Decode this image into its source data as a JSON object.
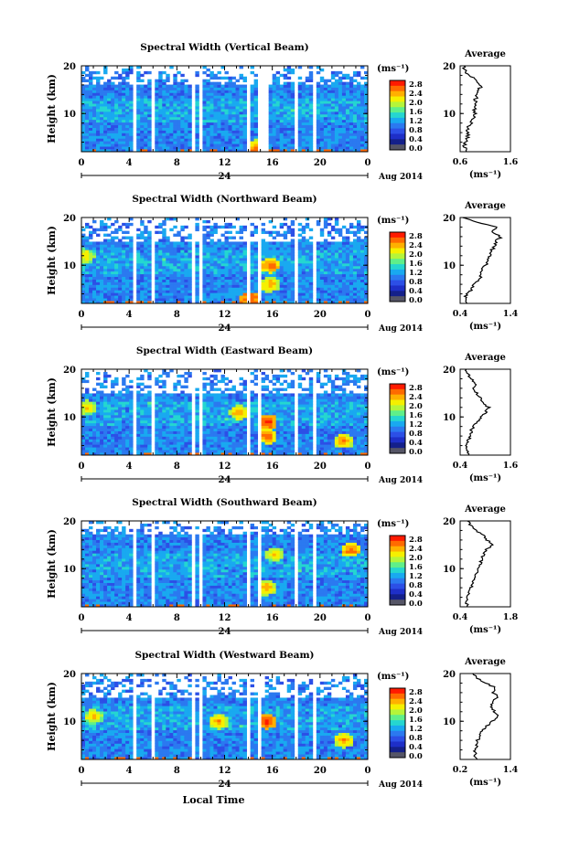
{
  "figure": {
    "date_label": "Aug 2014",
    "day_label": "24",
    "xlabel": "Local Time"
  },
  "colorbar": {
    "unit_label": "(ms⁻¹)",
    "ticks": [
      "2.8",
      "2.4",
      "2.0",
      "1.6",
      "1.2",
      "0.8",
      "0.4",
      "0.0"
    ],
    "colors": [
      "#ff1a00",
      "#ff6a00",
      "#ffb000",
      "#f5f000",
      "#b5f53a",
      "#5fef8a",
      "#25d6d0",
      "#19a9f0",
      "#2b79f0",
      "#2c4fe6",
      "#1e2fc8",
      "#14208a",
      "#555566"
    ]
  },
  "chart_data": [
    {
      "type": "heatmap",
      "title": "Spectral Width (Vertical Beam)",
      "ylabel": "Height (km)",
      "xlabel": "Local Time",
      "x_ticks": [
        "0",
        "4",
        "8",
        "12",
        "16",
        "20",
        "0"
      ],
      "y_ticks": [
        "20",
        "10"
      ],
      "xlim": [
        0,
        24
      ],
      "ylim": [
        2,
        20
      ],
      "gaps_hours": [
        [
          4.2,
          4.7
        ],
        [
          5.9,
          6.3
        ],
        [
          9.1,
          9.4
        ],
        [
          9.8,
          10.1
        ],
        [
          13.8,
          14.2
        ],
        [
          14.8,
          15.6
        ],
        [
          17.7,
          18.1
        ],
        [
          19.4,
          19.8
        ]
      ],
      "hot_spots": [
        {
          "t": 14.6,
          "h": 3,
          "v": 2.4
        }
      ],
      "sparse_above_km": 16,
      "profile": {
        "title": "Average",
        "xlabel": "(ms⁻¹)",
        "x_ticks": [
          "0.6",
          "1.6"
        ],
        "xlim": [
          0.6,
          1.6
        ],
        "y_ticks": [
          "20",
          "10"
        ],
        "heights": [
          2,
          3,
          4,
          5,
          6,
          7,
          8,
          9,
          10,
          11,
          12,
          13,
          14,
          15,
          16,
          17,
          18,
          19,
          20
        ],
        "values": [
          0.72,
          0.68,
          0.7,
          0.75,
          0.74,
          0.76,
          0.82,
          0.86,
          0.9,
          0.88,
          0.92,
          0.9,
          0.95,
          0.98,
          1.02,
          0.92,
          0.78,
          0.7,
          0.68
        ]
      }
    },
    {
      "type": "heatmap",
      "title": "Spectral Width (Northward Beam)",
      "ylabel": "Height (km)",
      "xlabel": "Local Time",
      "x_ticks": [
        "0",
        "4",
        "8",
        "12",
        "16",
        "20",
        "0"
      ],
      "y_ticks": [
        "20",
        "10"
      ],
      "xlim": [
        0,
        24
      ],
      "ylim": [
        2,
        20
      ],
      "gaps_hours": [
        [
          4.2,
          4.7
        ],
        [
          5.9,
          6.3
        ],
        [
          9.1,
          9.4
        ],
        [
          9.8,
          10.1
        ],
        [
          13.8,
          14.2
        ],
        [
          14.8,
          15.1
        ],
        [
          17.7,
          18.1
        ],
        [
          19.4,
          19.8
        ]
      ],
      "hot_spots": [
        {
          "t": 15.8,
          "h": 10,
          "v": 2.6
        },
        {
          "t": 15.8,
          "h": 6,
          "v": 2.4
        },
        {
          "t": 14.1,
          "h": 3,
          "v": 2.8
        },
        {
          "t": 0.3,
          "h": 12,
          "v": 2.2
        }
      ],
      "sparse_above_km": 15,
      "profile": {
        "title": "Average",
        "xlabel": "(ms⁻¹)",
        "x_ticks": [
          "0.4",
          "1.4"
        ],
        "xlim": [
          0.4,
          1.4
        ],
        "y_ticks": [
          "20",
          "10"
        ],
        "heights": [
          2,
          3,
          4,
          5,
          6,
          7,
          8,
          9,
          10,
          11,
          12,
          13,
          14,
          15,
          16,
          17,
          18,
          19,
          20
        ],
        "values": [
          0.55,
          0.5,
          0.55,
          0.62,
          0.7,
          0.8,
          0.82,
          0.85,
          0.9,
          0.96,
          1.0,
          1.02,
          1.08,
          1.12,
          1.2,
          1.05,
          1.15,
          0.7,
          0.45
        ]
      }
    },
    {
      "type": "heatmap",
      "title": "Spectral Width (Eastward Beam)",
      "ylabel": "Height (km)",
      "xlabel": "Local Time",
      "x_ticks": [
        "0",
        "4",
        "8",
        "12",
        "16",
        "20",
        "0"
      ],
      "y_ticks": [
        "20",
        "10"
      ],
      "xlim": [
        0,
        24
      ],
      "ylim": [
        2,
        20
      ],
      "gaps_hours": [
        [
          4.2,
          4.7
        ],
        [
          5.9,
          6.3
        ],
        [
          9.1,
          9.4
        ],
        [
          9.8,
          10.1
        ],
        [
          13.8,
          14.2
        ],
        [
          14.8,
          15.1
        ],
        [
          17.7,
          18.1
        ],
        [
          19.4,
          19.8
        ]
      ],
      "hot_spots": [
        {
          "t": 15.6,
          "h": 9,
          "v": 2.8
        },
        {
          "t": 15.6,
          "h": 6,
          "v": 2.6
        },
        {
          "t": 13.2,
          "h": 11,
          "v": 2.4
        },
        {
          "t": 0.5,
          "h": 12,
          "v": 2.2
        },
        {
          "t": 22.0,
          "h": 5,
          "v": 2.4
        }
      ],
      "sparse_above_km": 15,
      "profile": {
        "title": "Average",
        "xlabel": "(ms⁻¹)",
        "x_ticks": [
          "0.4",
          "1.6"
        ],
        "xlim": [
          0.4,
          1.6
        ],
        "y_ticks": [
          "20",
          "10"
        ],
        "heights": [
          2,
          3,
          4,
          5,
          6,
          7,
          8,
          9,
          10,
          11,
          12,
          13,
          14,
          15,
          16,
          17,
          18,
          19,
          20
        ],
        "values": [
          0.62,
          0.58,
          0.56,
          0.6,
          0.62,
          0.66,
          0.72,
          0.8,
          0.92,
          1.02,
          1.08,
          0.95,
          0.88,
          0.8,
          0.7,
          0.78,
          0.65,
          0.6,
          0.55
        ]
      }
    },
    {
      "type": "heatmap",
      "title": "Spectral Width (Southward Beam)",
      "ylabel": "Height (km)",
      "xlabel": "Local Time",
      "x_ticks": [
        "0",
        "4",
        "8",
        "12",
        "16",
        "20",
        "0"
      ],
      "y_ticks": [
        "20",
        "10"
      ],
      "xlim": [
        0,
        24
      ],
      "ylim": [
        2,
        20
      ],
      "gaps_hours": [
        [
          4.2,
          4.7
        ],
        [
          5.9,
          6.3
        ],
        [
          9.1,
          9.4
        ],
        [
          9.8,
          10.1
        ],
        [
          13.8,
          14.2
        ],
        [
          14.8,
          15.1
        ],
        [
          17.7,
          18.1
        ],
        [
          19.4,
          19.8
        ]
      ],
      "hot_spots": [
        {
          "t": 15.5,
          "h": 6,
          "v": 2.4
        },
        {
          "t": 22.6,
          "h": 14,
          "v": 2.6
        },
        {
          "t": 16.2,
          "h": 13,
          "v": 2.2
        }
      ],
      "sparse_above_km": 17,
      "profile": {
        "title": "Average",
        "xlabel": "(ms⁻¹)",
        "x_ticks": [
          "0.4",
          "1.8"
        ],
        "xlim": [
          0.4,
          1.8
        ],
        "y_ticks": [
          "20",
          "10"
        ],
        "heights": [
          2,
          3,
          4,
          5,
          6,
          7,
          8,
          9,
          10,
          11,
          12,
          13,
          14,
          15,
          16,
          17,
          18,
          19,
          20
        ],
        "values": [
          0.6,
          0.58,
          0.62,
          0.66,
          0.7,
          0.76,
          0.8,
          0.86,
          0.9,
          0.96,
          1.0,
          1.06,
          1.12,
          1.3,
          1.15,
          1.05,
          0.85,
          0.7,
          0.6
        ]
      }
    },
    {
      "type": "heatmap",
      "title": "Spectral Width (Westward Beam)",
      "ylabel": "Height (km)",
      "xlabel": "Local Time",
      "x_ticks": [
        "0",
        "4",
        "8",
        "12",
        "16",
        "20",
        "0"
      ],
      "y_ticks": [
        "20",
        "10"
      ],
      "xlim": [
        0,
        24
      ],
      "ylim": [
        2,
        20
      ],
      "gaps_hours": [
        [
          4.2,
          4.7
        ],
        [
          5.9,
          6.3
        ],
        [
          9.1,
          9.4
        ],
        [
          9.8,
          10.1
        ],
        [
          13.8,
          14.2
        ],
        [
          14.8,
          15.1
        ],
        [
          17.7,
          18.1
        ],
        [
          19.4,
          19.8
        ]
      ],
      "hot_spots": [
        {
          "t": 15.6,
          "h": 10,
          "v": 2.8
        },
        {
          "t": 11.5,
          "h": 10,
          "v": 2.4
        },
        {
          "t": 1.0,
          "h": 11,
          "v": 2.2
        },
        {
          "t": 22.0,
          "h": 6,
          "v": 2.4
        }
      ],
      "sparse_above_km": 15,
      "profile": {
        "title": "Average",
        "xlabel": "(ms⁻¹)",
        "x_ticks": [
          "0.2",
          "1.4"
        ],
        "xlim": [
          0.2,
          1.4
        ],
        "y_ticks": [
          "20",
          "10"
        ],
        "heights": [
          2,
          3,
          4,
          5,
          6,
          7,
          8,
          9,
          10,
          11,
          12,
          13,
          14,
          15,
          16,
          17,
          18,
          19,
          20
        ],
        "values": [
          0.58,
          0.55,
          0.56,
          0.6,
          0.62,
          0.66,
          0.74,
          0.82,
          0.98,
          1.1,
          1.02,
          0.92,
          0.95,
          1.1,
          1.0,
          1.05,
          0.8,
          0.62,
          0.5
        ]
      }
    }
  ]
}
